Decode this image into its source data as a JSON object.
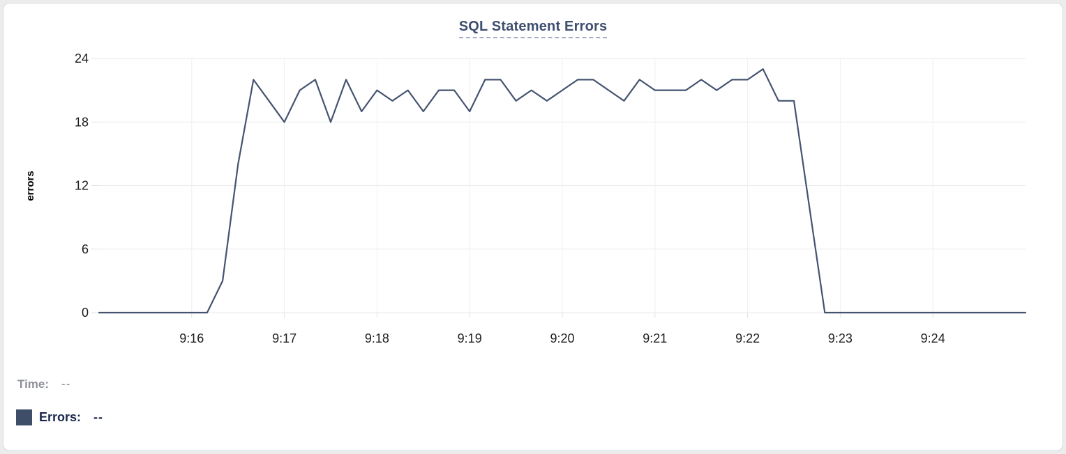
{
  "title": "SQL Statement Errors",
  "tooltip": {
    "time_label": "Time:",
    "time_value": "--",
    "errors_label": "Errors:",
    "errors_value": "--"
  },
  "colors": {
    "line": "#44536f",
    "legend_swatch": "#3e4d68",
    "title_text": "#3e4e6e",
    "title_underline": "#a6adc2",
    "time_text": "#8e9197",
    "errors_text": "#19274d",
    "grid_horizontal": "#e9eaec",
    "grid_vertical": "#eff0f2",
    "tick": "#dfe0e2",
    "axis_text": "#1b1c1e"
  },
  "chart_data": {
    "type": "line",
    "title": "SQL Statement Errors",
    "xlabel": "",
    "ylabel": "errors",
    "ylim": [
      0,
      24
    ],
    "y_ticks": [
      0,
      6,
      12,
      18,
      24
    ],
    "x_tick_labels": [
      "9:16",
      "9:17",
      "9:18",
      "9:19",
      "9:20",
      "9:21",
      "9:22",
      "9:23",
      "9:24"
    ],
    "x_range": [
      "9:15:00",
      "9:25:00"
    ],
    "interval_seconds": 10,
    "grid": true,
    "legend_position": "none",
    "times": [
      "9:15:00",
      "9:15:10",
      "9:15:20",
      "9:15:30",
      "9:15:40",
      "9:15:50",
      "9:16:00",
      "9:16:10",
      "9:16:20",
      "9:16:30",
      "9:16:40",
      "9:16:50",
      "9:17:00",
      "9:17:10",
      "9:17:20",
      "9:17:30",
      "9:17:40",
      "9:17:50",
      "9:18:00",
      "9:18:10",
      "9:18:20",
      "9:18:30",
      "9:18:40",
      "9:18:50",
      "9:19:00",
      "9:19:10",
      "9:19:20",
      "9:19:30",
      "9:19:40",
      "9:19:50",
      "9:20:00",
      "9:20:10",
      "9:20:20",
      "9:20:30",
      "9:20:40",
      "9:20:50",
      "9:21:00",
      "9:21:10",
      "9:21:20",
      "9:21:30",
      "9:21:40",
      "9:21:50",
      "9:22:00",
      "9:22:10",
      "9:22:20",
      "9:22:30",
      "9:22:40",
      "9:22:50",
      "9:23:00",
      "9:23:10",
      "9:23:20",
      "9:23:30",
      "9:23:40",
      "9:23:50",
      "9:24:00",
      "9:24:10",
      "9:24:20",
      "9:24:30",
      "9:24:40",
      "9:24:50",
      "9:25:00"
    ],
    "series": [
      {
        "name": "Errors",
        "color": "#44536f",
        "values": [
          0,
          0,
          0,
          0,
          0,
          0,
          0,
          0,
          3,
          14,
          22,
          20,
          18,
          21,
          22,
          18,
          22,
          19,
          21,
          20,
          21,
          19,
          21,
          21,
          19,
          22,
          22,
          20,
          21,
          20,
          21,
          22,
          22,
          21,
          20,
          22,
          21,
          21,
          21,
          22,
          21,
          22,
          22,
          23,
          20,
          20,
          10,
          0,
          0,
          0,
          0,
          0,
          0,
          0,
          0,
          0,
          0,
          0,
          0,
          0,
          0
        ]
      }
    ]
  }
}
